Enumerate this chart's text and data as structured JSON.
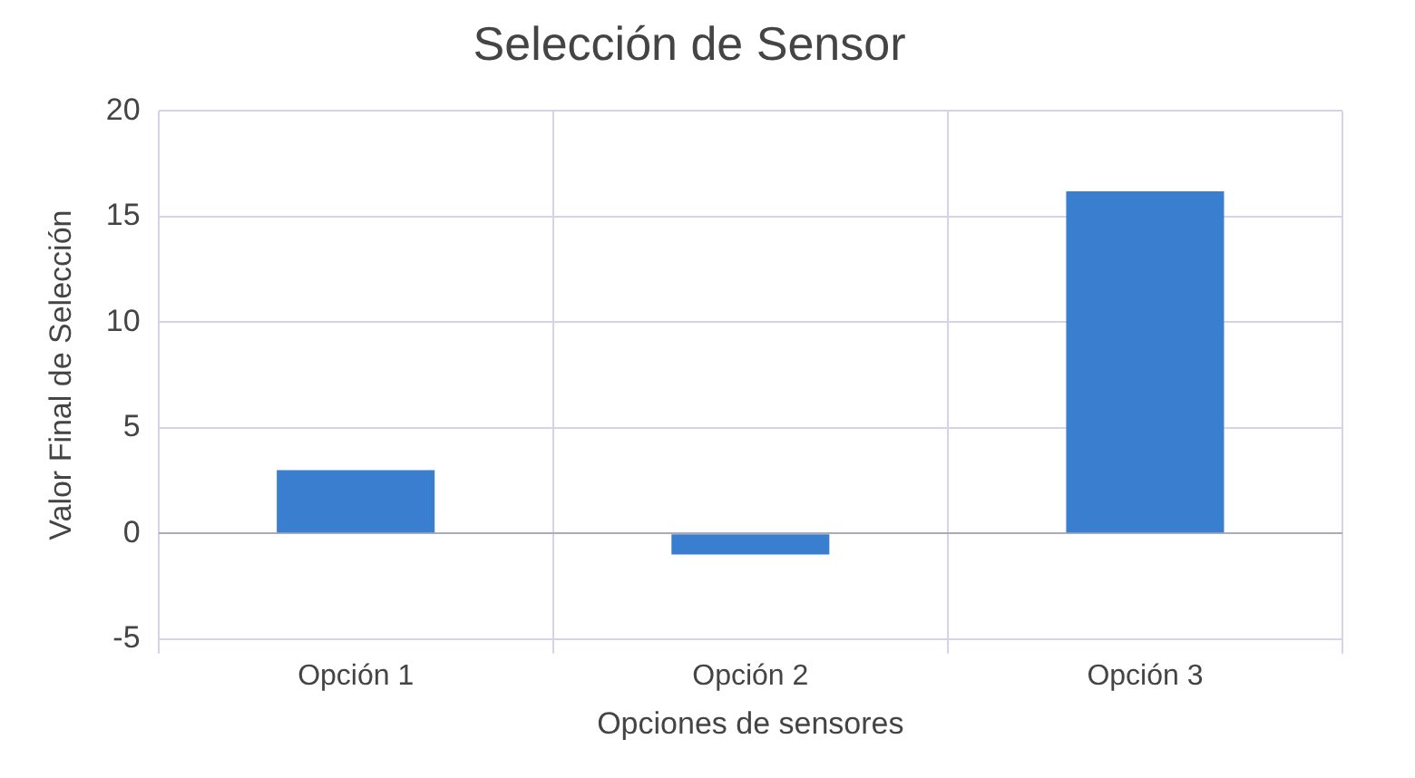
{
  "chart_data": {
    "type": "bar",
    "title": "Selección de Sensor",
    "xlabel": "Opciones de sensores",
    "ylabel": "Valor Final de Selección",
    "categories": [
      "Opción 1",
      "Opción 2",
      "Opción 3"
    ],
    "values": [
      3,
      -1,
      16.2
    ],
    "color": "#3a7fcf",
    "ylim": [
      -5,
      20
    ],
    "yticks": [
      -5,
      0,
      5,
      10,
      15,
      20
    ],
    "grid": true
  }
}
